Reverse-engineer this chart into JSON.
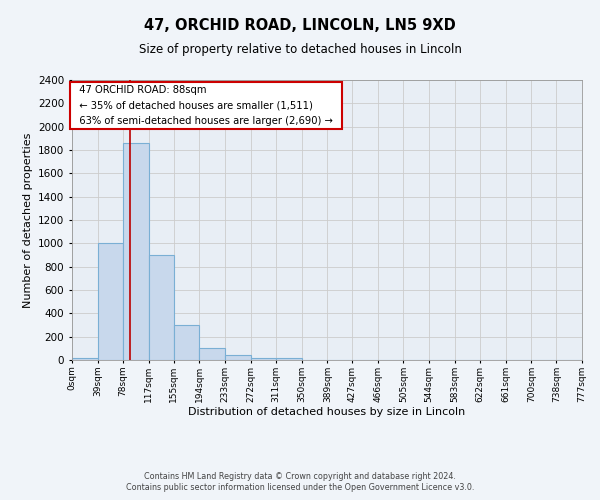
{
  "title": "47, ORCHID ROAD, LINCOLN, LN5 9XD",
  "subtitle": "Size of property relative to detached houses in Lincoln",
  "xlabel": "Distribution of detached houses by size in Lincoln",
  "ylabel": "Number of detached properties",
  "bar_bins": [
    0,
    39,
    78,
    117,
    155,
    194,
    233,
    272,
    311,
    350,
    389,
    427,
    466,
    505,
    544,
    583,
    622,
    661,
    700,
    738,
    777
  ],
  "bar_heights": [
    20,
    1000,
    1860,
    900,
    300,
    100,
    40,
    20,
    15,
    0,
    0,
    0,
    0,
    0,
    0,
    0,
    0,
    0,
    0,
    0
  ],
  "bar_color": "#c8d8ec",
  "bar_edge_color": "#7aafd4",
  "red_line_x": 88,
  "ylim": [
    0,
    2400
  ],
  "yticks": [
    0,
    200,
    400,
    600,
    800,
    1000,
    1200,
    1400,
    1600,
    1800,
    2000,
    2200,
    2400
  ],
  "annotation_title": "47 ORCHID ROAD: 88sqm",
  "annotation_line1": "← 35% of detached houses are smaller (1,511)",
  "annotation_line2": "63% of semi-detached houses are larger (2,690) →",
  "annotation_box_color": "#ffffff",
  "annotation_box_edge": "#cc0000",
  "grid_color": "#cccccc",
  "plot_bg_color": "#e8eef5",
  "fig_bg_color": "#f0f4f9",
  "footer1": "Contains HM Land Registry data © Crown copyright and database right 2024.",
  "footer2": "Contains public sector information licensed under the Open Government Licence v3.0.",
  "tick_labels": [
    "0sqm",
    "39sqm",
    "78sqm",
    "117sqm",
    "155sqm",
    "194sqm",
    "233sqm",
    "272sqm",
    "311sqm",
    "350sqm",
    "389sqm",
    "427sqm",
    "466sqm",
    "505sqm",
    "544sqm",
    "583sqm",
    "622sqm",
    "661sqm",
    "700sqm",
    "738sqm",
    "777sqm"
  ]
}
